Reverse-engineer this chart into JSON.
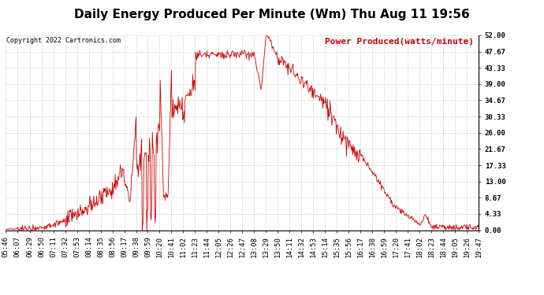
{
  "title": "Daily Energy Produced Per Minute (Wm) Thu Aug 11 19:56",
  "copyright_text": "Copyright 2022 Cartronics.com",
  "legend_text": "Power Produced(watts/minute)",
  "title_color": "#000000",
  "legend_color": "#cc0000",
  "copyright_color": "#000000",
  "line_color": "#cc0000",
  "bg_color": "#ffffff",
  "grid_color": "#aaaaaa",
  "y_min": 0.0,
  "y_max": 52.0,
  "y_ticks": [
    0.0,
    4.33,
    8.67,
    13.0,
    17.33,
    21.67,
    26.0,
    30.33,
    34.67,
    39.0,
    43.33,
    47.67,
    52.0
  ],
  "x_tick_labels": [
    "05:46",
    "06:07",
    "06:29",
    "06:50",
    "07:11",
    "07:32",
    "07:53",
    "08:14",
    "08:35",
    "08:56",
    "09:17",
    "09:38",
    "09:59",
    "10:20",
    "10:41",
    "11:02",
    "11:23",
    "11:44",
    "12:05",
    "12:26",
    "12:47",
    "13:08",
    "13:29",
    "13:50",
    "14:11",
    "14:32",
    "14:53",
    "15:14",
    "15:35",
    "15:56",
    "16:17",
    "16:38",
    "16:59",
    "17:20",
    "17:41",
    "18:02",
    "18:23",
    "18:44",
    "19:05",
    "19:26",
    "19:47"
  ],
  "title_fontsize": 11,
  "tick_fontsize": 6.5,
  "legend_fontsize": 8
}
